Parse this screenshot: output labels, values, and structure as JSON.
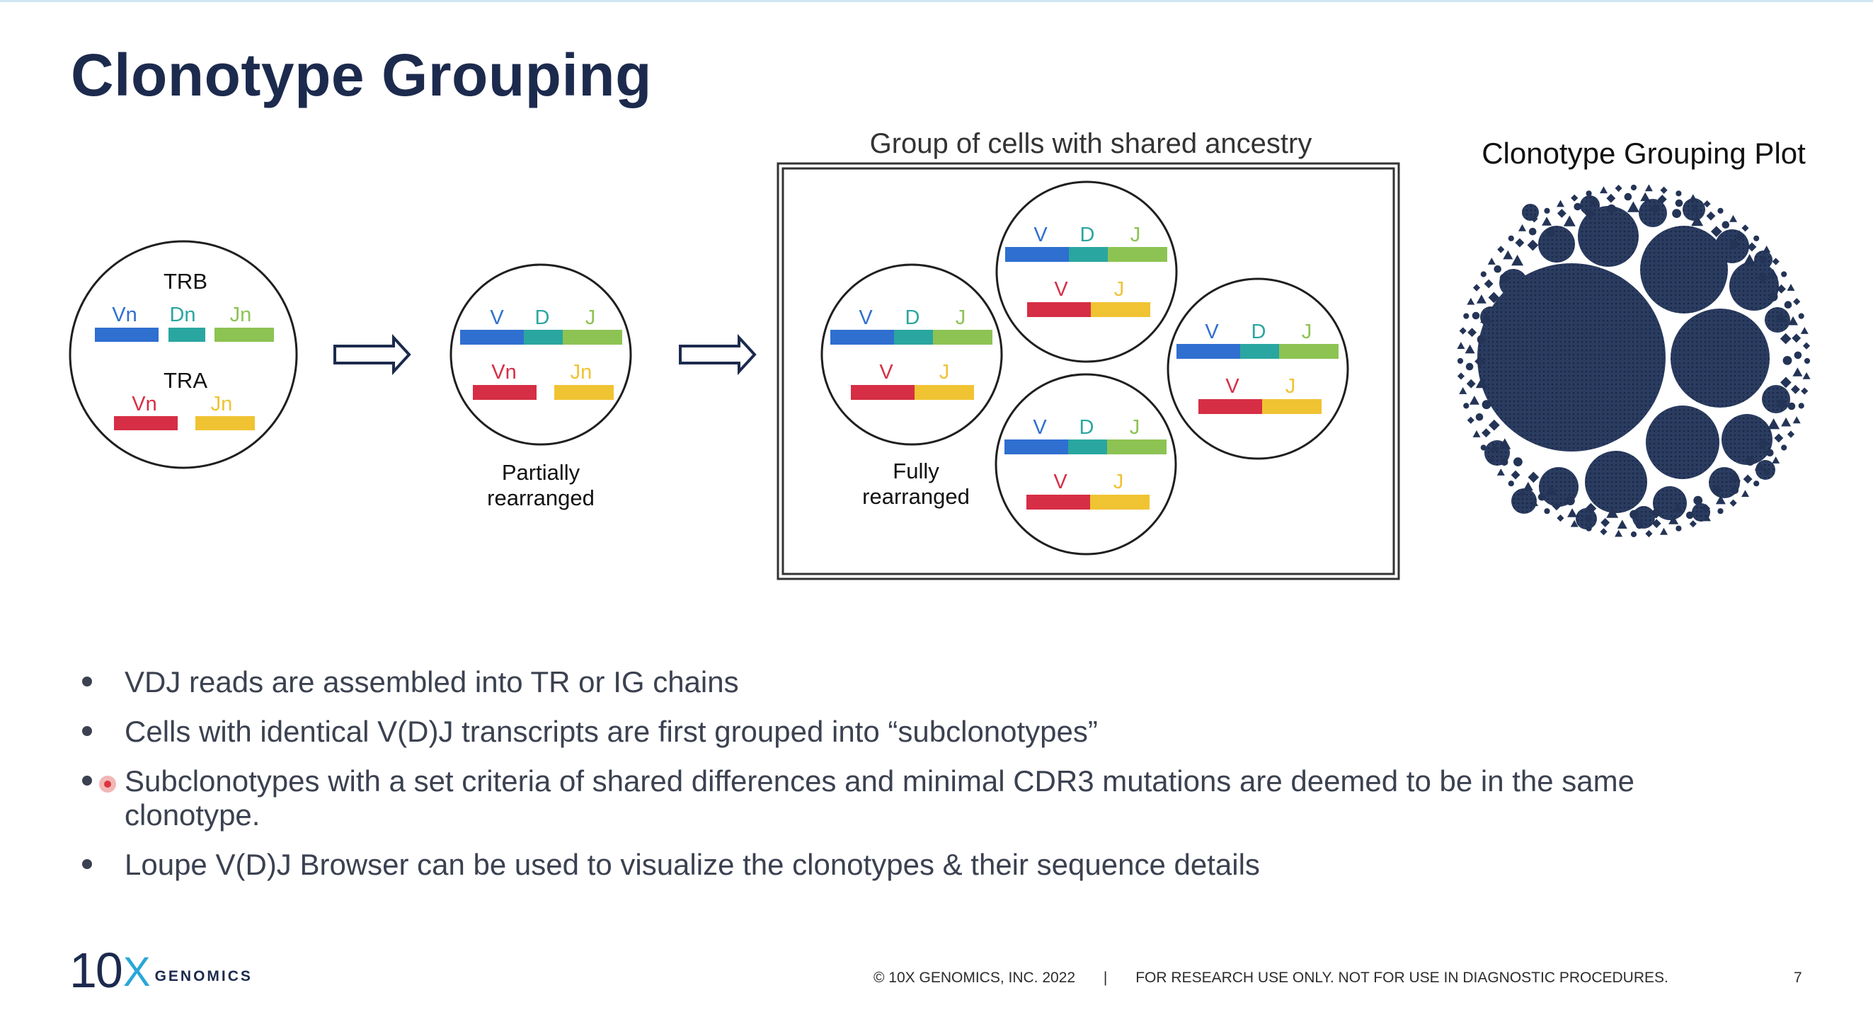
{
  "slide": {
    "title": "Clonotype Grouping"
  },
  "diagram": {
    "group_title": "Group of cells with shared ancestry",
    "plot_title": "Clonotype Grouping Plot",
    "cell1": {
      "trb_label": "TRB",
      "tra_label": "TRA",
      "trb_segments": [
        "Vn",
        "Dn",
        "Jn"
      ],
      "tra_segments": [
        "Vn",
        "Jn"
      ]
    },
    "cell2": {
      "heavy_segments": [
        "V",
        "D",
        "J"
      ],
      "light_segments": [
        "Vn",
        "Jn"
      ],
      "caption_line1": "Partially",
      "caption_line2": "rearranged"
    },
    "group_cells": {
      "heavy_segments": [
        "V",
        "D",
        "J"
      ],
      "light_segments": [
        "V",
        "J"
      ],
      "caption_line1": "Fully",
      "caption_line2": "rearranged"
    },
    "colors": {
      "v": "#2f6fd0",
      "d": "#2aa6a0",
      "j": "#8dc353",
      "light_v": "#d62e45",
      "light_j": "#f0c333",
      "outline": "#1f1f1f",
      "plot_fill": "#243456"
    }
  },
  "bullets": [
    "VDJ reads are assembled into TR or IG chains",
    "Cells with identical V(D)J transcripts are first grouped into “subclonotypes”",
    "Subclonotypes with a set criteria of shared differences and minimal CDR3 mutations are deemed to be in the same clonotype.",
    "Loupe V(D)J Browser can be used to visualize the clonotypes & their sequence details"
  ],
  "footer": {
    "logo_number": "10",
    "logo_x": "X",
    "logo_word": "GENOMICS",
    "copyright": "© 10X GENOMICS, INC. 2022",
    "separator": "|",
    "disclaimer": "FOR RESEARCH USE ONLY. NOT FOR USE IN DIAGNOSTIC PROCEDURES.",
    "page_number": "7"
  }
}
